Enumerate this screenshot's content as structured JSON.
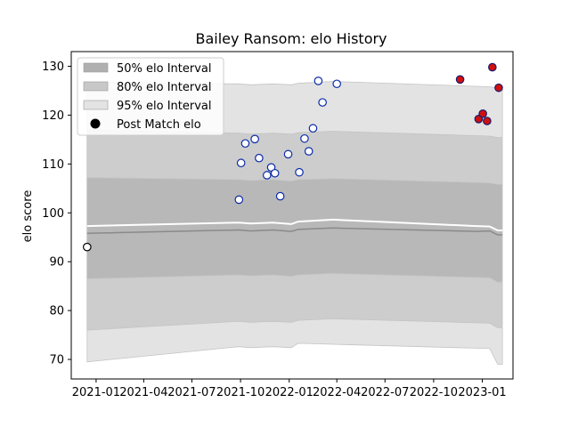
{
  "chart_data": {
    "type": "area",
    "title": "Bailey Ransom: elo History",
    "xlabel": "",
    "ylabel": "elo score",
    "ylim": [
      66,
      133
    ],
    "xlim": [
      "2020-11-15",
      "2023-02-28"
    ],
    "yticks": [
      70,
      80,
      90,
      100,
      110,
      120,
      130
    ],
    "xticks": [
      "2021-01",
      "2021-04",
      "2021-07",
      "2021-10",
      "2022-01",
      "2022-04",
      "2022-07",
      "2022-10",
      "2023-01"
    ],
    "grid": false,
    "legend_position": "top-left",
    "legend": [
      {
        "label": "50% elo Interval",
        "kind": "band",
        "color": "#b0b0b0"
      },
      {
        "label": "80% elo Interval",
        "kind": "band",
        "color": "#c8c8c8"
      },
      {
        "label": "95% elo Interval",
        "kind": "band",
        "color": "#e3e3e3"
      },
      {
        "label": "Post Match elo",
        "kind": "marker",
        "color": "#000000"
      }
    ],
    "band_dates": [
      "2020-12-15",
      "2021-09-28",
      "2021-10-20",
      "2021-12-01",
      "2022-01-05",
      "2022-01-18",
      "2022-03-25",
      "2022-12-20",
      "2023-01-15",
      "2023-01-30",
      "2023-02-08"
    ],
    "mean": [
      95.8,
      96.5,
      96.3,
      96.5,
      96.2,
      96.6,
      96.9,
      96.2,
      96.3,
      95.5,
      95.5
    ],
    "mean_upper_line": [
      97.3,
      98.0,
      97.8,
      98.0,
      97.7,
      98.2,
      98.6,
      97.3,
      97.2,
      96.4,
      96.4
    ],
    "interval_50": {
      "lower": [
        86.5,
        87.3,
        87.1,
        87.3,
        87.0,
        87.3,
        87.6,
        86.8,
        86.7,
        85.8,
        85.8
      ],
      "upper": [
        107.2,
        106.8,
        106.6,
        106.8,
        106.5,
        106.8,
        107.0,
        106.2,
        106.1,
        105.8,
        105.8
      ]
    },
    "interval_80": {
      "lower": [
        76.0,
        77.8,
        77.6,
        77.8,
        77.6,
        78.0,
        78.3,
        77.5,
        77.4,
        76.5,
        76.5
      ],
      "upper": [
        117.0,
        116.3,
        116.1,
        116.3,
        116.1,
        116.4,
        116.7,
        115.8,
        115.7,
        115.4,
        115.4
      ]
    },
    "interval_95": {
      "lower": [
        69.5,
        72.6,
        72.4,
        72.6,
        72.4,
        73.3,
        73.1,
        72.3,
        72.2,
        69.0,
        69.0
      ],
      "upper": [
        126.7,
        126.4,
        126.2,
        126.4,
        126.2,
        126.5,
        126.9,
        125.9,
        125.8,
        125.5,
        125.5
      ]
    },
    "series": [
      {
        "points": [
          {
            "x": "2020-12-15",
            "y": 93.0,
            "style": "white"
          },
          {
            "x": "2021-09-28",
            "y": 102.7,
            "style": "blue"
          },
          {
            "x": "2021-10-02",
            "y": 110.2,
            "style": "blue"
          },
          {
            "x": "2021-10-10",
            "y": 114.2,
            "style": "blue"
          },
          {
            "x": "2021-10-28",
            "y": 115.1,
            "style": "blue"
          },
          {
            "x": "2021-11-05",
            "y": 111.2,
            "style": "blue"
          },
          {
            "x": "2021-11-20",
            "y": 107.7,
            "style": "blue"
          },
          {
            "x": "2021-11-28",
            "y": 109.3,
            "style": "blue"
          },
          {
            "x": "2021-12-05",
            "y": 108.1,
            "style": "blue"
          },
          {
            "x": "2021-12-15",
            "y": 103.4,
            "style": "blue"
          },
          {
            "x": "2021-12-30",
            "y": 112.0,
            "style": "blue"
          },
          {
            "x": "2022-01-20",
            "y": 108.3,
            "style": "blue"
          },
          {
            "x": "2022-01-30",
            "y": 115.2,
            "style": "blue"
          },
          {
            "x": "2022-02-07",
            "y": 112.6,
            "style": "blue"
          },
          {
            "x": "2022-02-15",
            "y": 117.3,
            "style": "blue"
          },
          {
            "x": "2022-02-25",
            "y": 127.0,
            "style": "blue"
          },
          {
            "x": "2022-03-05",
            "y": 122.6,
            "style": "blue"
          },
          {
            "x": "2022-04-01",
            "y": 126.4,
            "style": "blue"
          },
          {
            "x": "2022-11-20",
            "y": 127.3,
            "style": "red"
          },
          {
            "x": "2022-12-25",
            "y": 119.2,
            "style": "red"
          },
          {
            "x": "2023-01-02",
            "y": 120.3,
            "style": "red"
          },
          {
            "x": "2023-01-10",
            "y": 118.8,
            "style": "red"
          },
          {
            "x": "2023-01-20",
            "y": 129.8,
            "style": "red"
          },
          {
            "x": "2023-02-01",
            "y": 125.6,
            "style": "red"
          }
        ]
      }
    ]
  }
}
